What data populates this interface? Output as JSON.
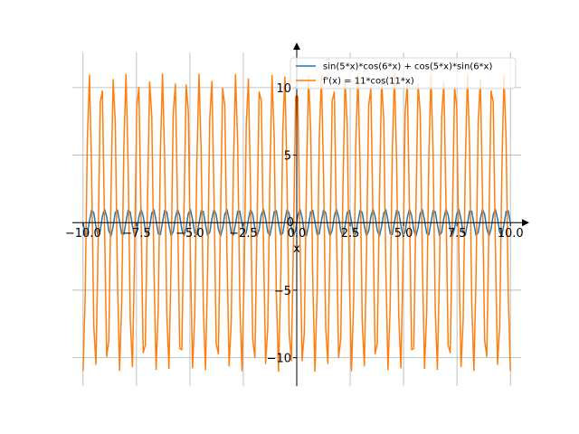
{
  "chart_data": {
    "type": "line",
    "title": "",
    "xlabel": "x",
    "ylabel": "",
    "xlim": [
      -10.5,
      10.5
    ],
    "ylim": [
      -12.1,
      12.6
    ],
    "grid": true,
    "legend_position": "top-right",
    "x_ticks": [
      -10,
      -7.5,
      -5,
      -2.5,
      0,
      2.5,
      5,
      7.5,
      10
    ],
    "x_tick_labels": [
      "−10.0",
      "−7.5",
      "−5.0",
      "−2.5",
      "0.0",
      "2.5",
      "5.0",
      "7.5",
      "10.0"
    ],
    "y_ticks": [
      -10,
      -5,
      0,
      5,
      10
    ],
    "y_tick_labels": [
      "−10",
      "−5",
      "0",
      "5",
      "10"
    ],
    "sampling": {
      "x_start": -10,
      "x_end": 10,
      "samples": 200
    },
    "series": [
      {
        "name": "sin(5*x)*cos(6*x) + cos(5*x)*sin(6*x)",
        "color": "#1f77b4",
        "expression": "sin(11x)",
        "amplitude": 1,
        "frequency": 11,
        "phase": "sin"
      },
      {
        "name": "f'(x) = 11*cos(11*x)",
        "color": "#ff7f0e",
        "expression": "11cos(11x)",
        "amplitude": 11,
        "frequency": 11,
        "phase": "cos"
      }
    ]
  }
}
